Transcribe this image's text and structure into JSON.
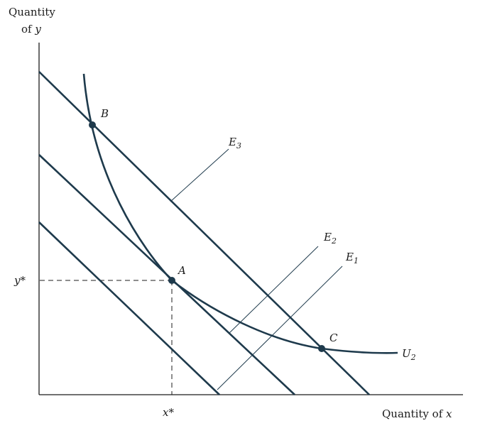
{
  "axes": {
    "y_title_line1": "Quantity",
    "y_title_line2_prefix": "of ",
    "y_title_line2_var": "y",
    "x_title_prefix": "Quantity of ",
    "x_title_var": "x",
    "y_tick": "y*",
    "x_tick": "x*"
  },
  "lines": {
    "E3": {
      "base": "E",
      "sub": "3"
    },
    "E2": {
      "base": "E",
      "sub": "2"
    },
    "E1": {
      "base": "E",
      "sub": "1"
    }
  },
  "curve": {
    "base": "U",
    "sub": "2"
  },
  "points": {
    "A": "A",
    "B": "B",
    "C": "C"
  }
}
